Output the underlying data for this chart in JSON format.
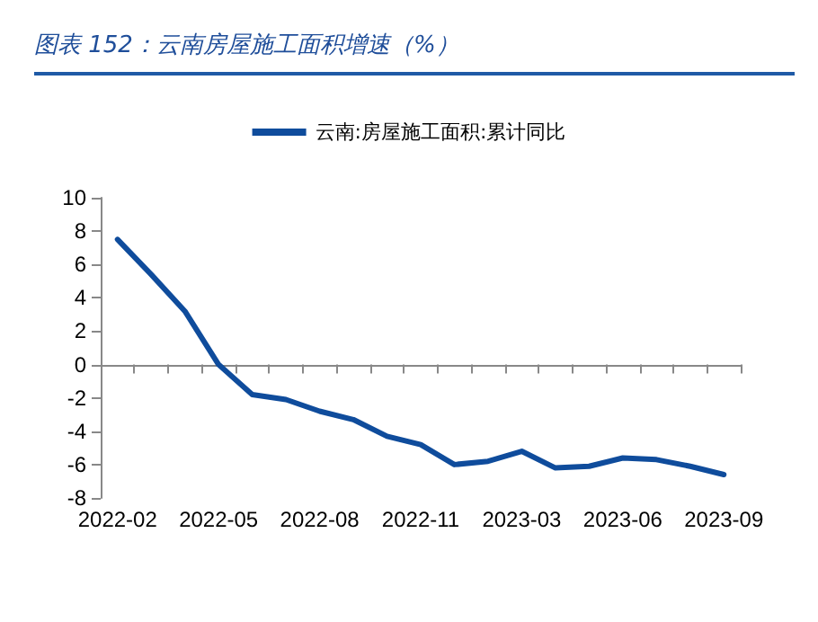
{
  "chart_data": {
    "type": "line",
    "title": "图表 152：云南房屋施工面积增速（%）",
    "categories": [
      "2022-02",
      null,
      null,
      "2022-05",
      null,
      null,
      "2022-08",
      null,
      null,
      "2022-11",
      null,
      null,
      "2023-03",
      null,
      null,
      "2023-06",
      null,
      null,
      "2023-09"
    ],
    "series": [
      {
        "name": "云南:房屋施工面积:累计同比",
        "color": "#0f4c9c",
        "values": [
          7.5,
          5.4,
          3.2,
          0,
          -1.8,
          -2.1,
          -2.8,
          -3.3,
          -4.3,
          -4.8,
          -6.0,
          -5.8,
          -5.2,
          -6.2,
          -6.1,
          -5.6,
          -5.7,
          -6.1,
          -6.6
        ]
      }
    ],
    "ylim": [
      -8,
      10
    ],
    "yticks": [
      -8,
      -6,
      -4,
      -2,
      0,
      2,
      4,
      6,
      8,
      10
    ],
    "legend": "top",
    "marker": "none",
    "line_style": "solid"
  }
}
